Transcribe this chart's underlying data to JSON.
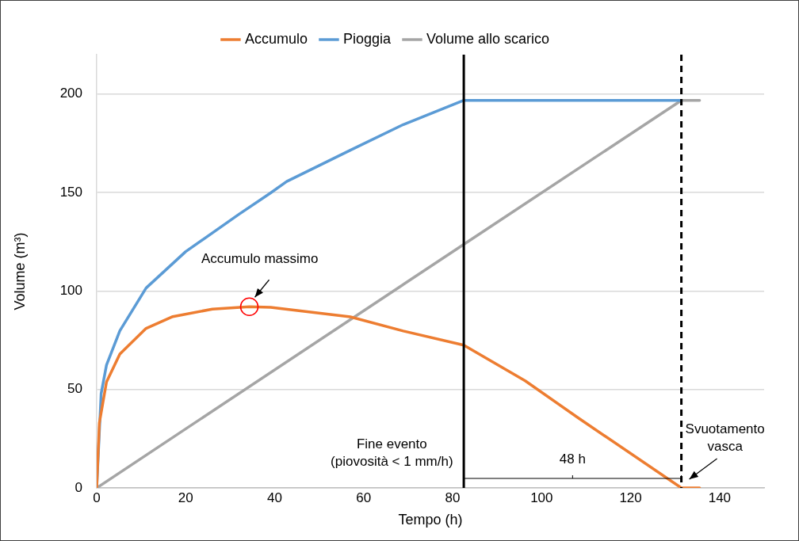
{
  "chart_data": {
    "type": "line",
    "xlabel": "Tempo (h)",
    "ylabel": "Volume (m³)",
    "xlim": [
      0,
      150
    ],
    "xticks": [
      0,
      20,
      40,
      60,
      80,
      100,
      120,
      140
    ],
    "ylim": [
      0,
      220
    ],
    "yticks": [
      0,
      50,
      100,
      150,
      200
    ],
    "grid": "y",
    "legend": "top",
    "marker": "none",
    "line_style": "solid",
    "series": [
      {
        "name": "Accumulo",
        "color": "#ed7d31",
        "x": [
          0,
          0.6,
          2.2,
          5.2,
          11.1,
          17.1,
          26,
          34.3,
          39.1,
          57,
          68.9,
          82.5,
          96.3,
          108.2,
          131.4,
          135.5
        ],
        "values": [
          0,
          33,
          53.8,
          68,
          81,
          87,
          90.8,
          92,
          91.7,
          86.9,
          79.7,
          72.5,
          54.4,
          35.6,
          0,
          0
        ]
      },
      {
        "name": "Pioggia",
        "color": "#5b9bd5",
        "x": [
          0,
          1,
          2.2,
          5.2,
          11.1,
          20,
          32,
          39.1,
          42.7,
          57,
          68.9,
          82.5,
          131.4
        ],
        "values": [
          0,
          47.9,
          62.4,
          79.8,
          101.5,
          120,
          139,
          149.8,
          155.6,
          171.5,
          184.5,
          196.8,
          196.8
        ]
      },
      {
        "name": "Volume allo scarico",
        "color": "#a5a5a5",
        "x": [
          0,
          82.5,
          131.4,
          135.5
        ],
        "values": [
          0,
          123.7,
          196.8,
          196.8
        ]
      }
    ],
    "ref_lines": [
      {
        "axis": "x",
        "value": 82.5,
        "label": "Fine evento\n(piovosità < 1 mm/h)",
        "color": "#000000",
        "line_style": "solid"
      },
      {
        "axis": "x",
        "value": 131.4,
        "label": "Svuotamento\nvasca",
        "color": "#000000",
        "line_style": "dashed"
      }
    ],
    "annotations": [
      {
        "text": "Accumulo massimo",
        "x": 34.3,
        "y": 92
      },
      "48 h"
    ]
  }
}
